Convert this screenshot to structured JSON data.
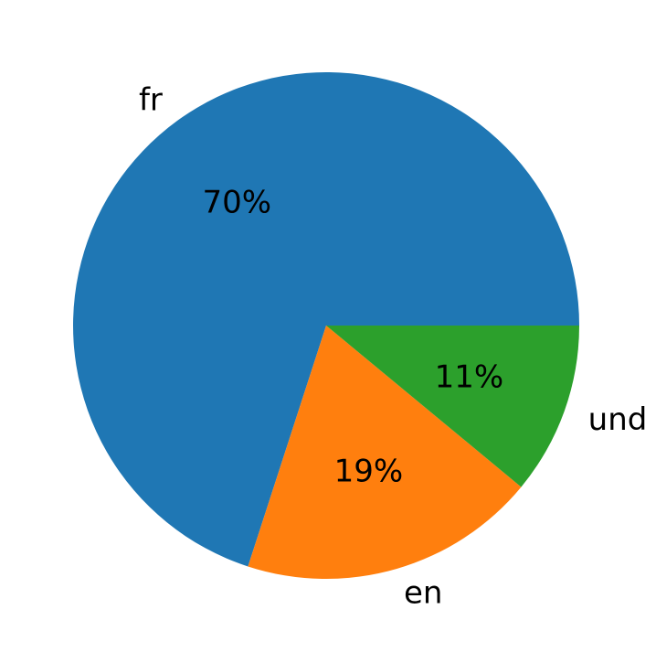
{
  "chart_data": {
    "type": "pie",
    "slices": [
      {
        "label": "fr",
        "value": 70,
        "pct_label": "70%",
        "color": "#1f77b4"
      },
      {
        "label": "en",
        "value": 19,
        "pct_label": "19%",
        "color": "#ff7f0e"
      },
      {
        "label": "und",
        "value": 11,
        "pct_label": "11%",
        "color": "#2ca02c"
      }
    ],
    "start_angle_deg": 0,
    "direction": "counterclockwise"
  }
}
